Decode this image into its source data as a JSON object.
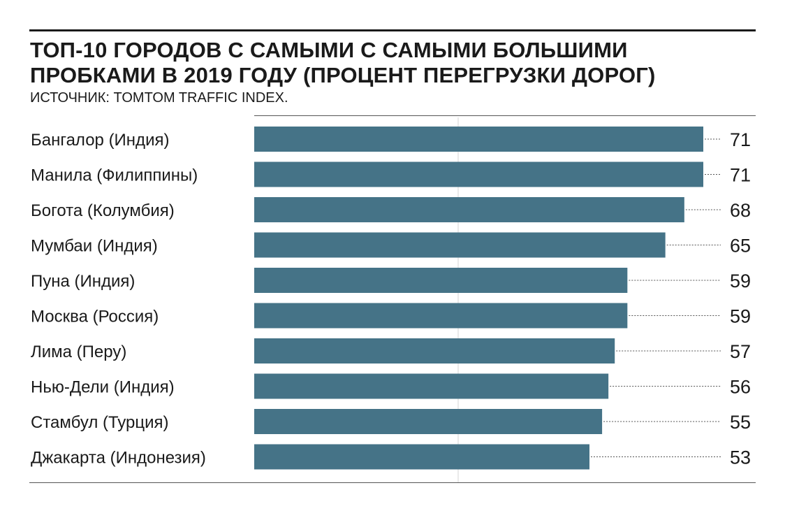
{
  "title": {
    "line1": "ТОП-10 ГОРОДОВ С САМЫМИ С САМЫМИ БОЛЬШИМИ",
    "line2": "ПРОБКАМИ В 2019 ГОДУ (ПРОЦЕНТ ПЕРЕГРУЗКИ ДОРОГ)"
  },
  "source": "ИСТОЧНИК: TOMTOM TRAFFIC INDEX.",
  "colors": {
    "bar": "#457387",
    "text": "#1a1a1a",
    "leader": "#555555"
  },
  "chart_data": {
    "type": "bar",
    "orientation": "horizontal",
    "title": "ТОП-10 ГОРОДОВ С САМЫМИ С САМЫМИ БОЛЬШИМИ ПРОБКАМИ В 2019 ГОДУ (ПРОЦЕНТ ПЕРЕГРУЗКИ ДОРОГ)",
    "categories": [
      "Бангалор (Индия)",
      "Манила (Филиппины)",
      "Богота (Колумбия)",
      "Мумбаи (Индия)",
      "Пуна (Индия)",
      "Москва (Россия)",
      "Лима (Перу)",
      "Нью-Дели (Индия)",
      "Стамбул (Турция)",
      "Джакарта (Индонезия)"
    ],
    "values": [
      71,
      71,
      68,
      65,
      59,
      59,
      57,
      56,
      55,
      53
    ],
    "xlim": [
      0,
      71
    ],
    "grid": false,
    "legend": "none"
  }
}
